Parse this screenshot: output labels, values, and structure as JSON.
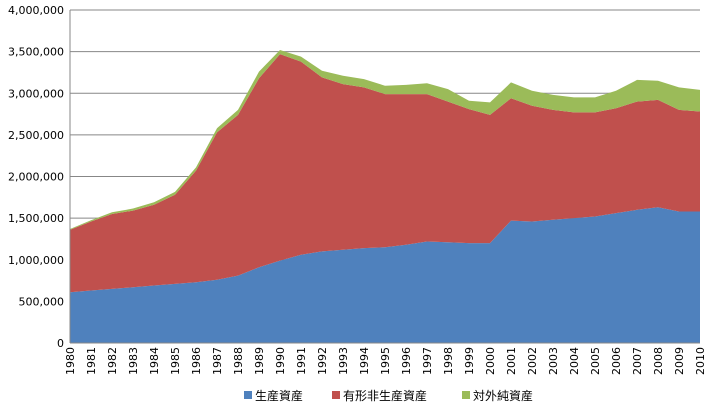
{
  "chart_data": {
    "type": "area",
    "stacked": true,
    "title": "",
    "xlabel": "",
    "ylabel": "",
    "x": [
      "1980",
      "1981",
      "1982",
      "1983",
      "1984",
      "1985",
      "1986",
      "1987",
      "1988",
      "1989",
      "1990",
      "1991",
      "1992",
      "1993",
      "1994",
      "1995",
      "1996",
      "1997",
      "1998",
      "1999",
      "2000",
      "2001",
      "2002",
      "2003",
      "2004",
      "2005",
      "2006",
      "2007",
      "2008",
      "2009",
      "2010"
    ],
    "ylim": [
      0,
      4000000
    ],
    "yticks": [
      0,
      500000,
      1000000,
      1500000,
      2000000,
      2500000,
      3000000,
      3500000,
      4000000
    ],
    "ytick_labels": [
      "0",
      "500,000",
      "1,000,000",
      "1,500,000",
      "2,000,000",
      "2,500,000",
      "3,000,000",
      "3,500,000",
      "4,000,000"
    ],
    "grid": "horizontal",
    "legend_position": "bottom",
    "series": [
      {
        "name": "生産資産",
        "color": "#4F81BD",
        "values": [
          610000,
          630000,
          650000,
          670000,
          690000,
          710000,
          730000,
          760000,
          810000,
          910000,
          990000,
          1060000,
          1100000,
          1120000,
          1140000,
          1150000,
          1180000,
          1220000,
          1210000,
          1200000,
          1200000,
          1470000,
          1460000,
          1480000,
          1500000,
          1520000,
          1560000,
          1600000,
          1630000,
          1580000,
          1580000
        ]
      },
      {
        "name": "有形非生産資産",
        "color": "#C0504D",
        "values": [
          750000,
          830000,
          900000,
          920000,
          970000,
          1070000,
          1340000,
          1770000,
          1930000,
          2270000,
          2480000,
          2320000,
          2090000,
          1990000,
          1930000,
          1840000,
          1810000,
          1770000,
          1690000,
          1610000,
          1540000,
          1470000,
          1390000,
          1320000,
          1270000,
          1250000,
          1260000,
          1300000,
          1290000,
          1220000,
          1200000
        ]
      },
      {
        "name": "対外純資産",
        "color": "#9BBB59",
        "values": [
          10000,
          15000,
          20000,
          25000,
          30000,
          35000,
          40000,
          50000,
          60000,
          80000,
          50000,
          60000,
          80000,
          100000,
          100000,
          100000,
          110000,
          130000,
          150000,
          100000,
          150000,
          190000,
          180000,
          180000,
          180000,
          180000,
          210000,
          260000,
          230000,
          270000,
          260000
        ]
      }
    ]
  }
}
